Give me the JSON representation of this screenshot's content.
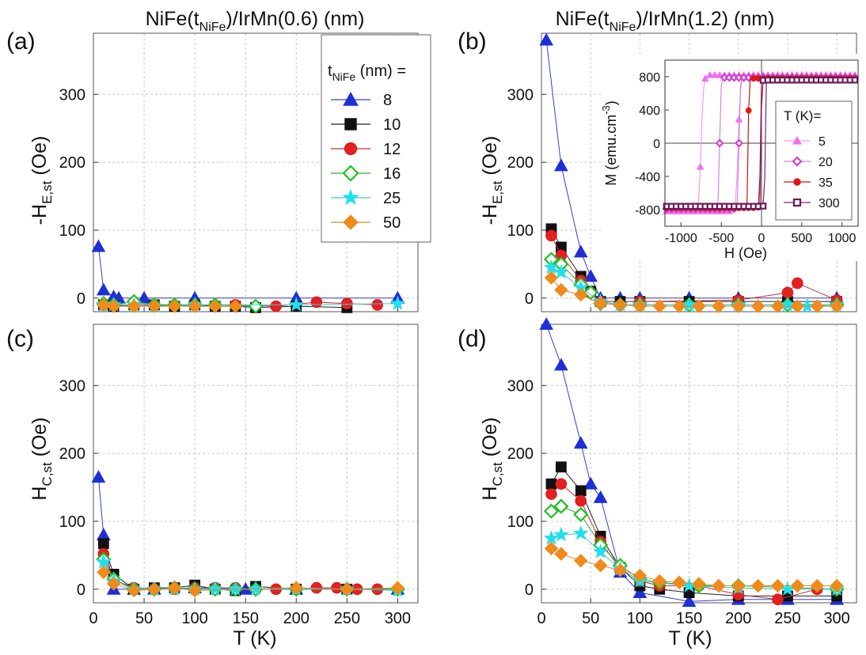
{
  "headings": {
    "left_prefix": "NiFe(t",
    "left_sub": "NiFe",
    "left_suffix": ")/IrMn(0.6)  (nm)",
    "right_prefix": "NiFe(t",
    "right_sub": "NiFe",
    "right_suffix": ")/IrMn(1.2)  (nm)"
  },
  "panel_labels": [
    "(a)",
    "(b)",
    "(c)",
    "(d)"
  ],
  "ylabels": {
    "he": {
      "pre": "-H",
      "sub": "E,st",
      "post": " (Oe)"
    },
    "hc": {
      "pre": "H",
      "sub": "C,st",
      "post": " (Oe)"
    }
  },
  "xlabel": "T (K)",
  "legend": {
    "title_pre": "t",
    "title_sub": "NiFe",
    "title_post": " (nm) =",
    "entries": [
      "8",
      "10",
      "12",
      "16",
      "25",
      "50"
    ]
  },
  "inset": {
    "xlabel": "H (Oe)",
    "ylabel_pre": "M (emu.cm",
    "ylabel_sup": "-3",
    "ylabel_post": ")",
    "legend_title": "T (K)=",
    "entries": [
      "5",
      "20",
      "35",
      "300"
    ]
  },
  "styles": {
    "series": [
      {
        "marker": "triangle",
        "color": "#1f2fd6",
        "fill": "#1f2fd6",
        "line": "#3140c8"
      },
      {
        "marker": "square",
        "color": "#111111",
        "fill": "#111111",
        "line": "#222222"
      },
      {
        "marker": "circle",
        "color": "#d81a1a",
        "fill": "#e52020",
        "line": "#c03030"
      },
      {
        "marker": "diamond-open",
        "color": "#22c022",
        "fill": "#ffffff",
        "line": "#33aa33"
      },
      {
        "marker": "star",
        "color": "#20e0f0",
        "fill": "#20e0f0",
        "line": "#40c8d8"
      },
      {
        "marker": "diamond",
        "color": "#f08a1a",
        "fill": "#f08a1a",
        "line": "#d88a3a"
      }
    ],
    "inset_series": [
      {
        "marker": "triangle",
        "color": "#f070f0",
        "line": "#f59af5"
      },
      {
        "marker": "diamond-open",
        "color": "#d040d0",
        "line": "#d880d8"
      },
      {
        "marker": "circle",
        "color": "#e01818",
        "line": "#c01818"
      },
      {
        "marker": "square-open",
        "color": "#6a1a5a",
        "line": "#7a2a6a"
      }
    ]
  },
  "chart_data": [
    {
      "id": "a",
      "type": "line",
      "xlim": [
        0,
        320
      ],
      "ylim": [
        -20,
        390
      ],
      "xticks": [
        0,
        50,
        100,
        150,
        200,
        250,
        300
      ],
      "yticks": [
        0,
        100,
        200,
        300
      ],
      "grid": true,
      "legend_position": "top-right",
      "series": [
        {
          "name": "8",
          "x": [
            5,
            10,
            20,
            25,
            50,
            100,
            200,
            300
          ],
          "y": [
            76,
            12,
            2,
            0,
            0,
            0,
            0,
            0
          ]
        },
        {
          "name": "10",
          "x": [
            10,
            20,
            40,
            60,
            80,
            100,
            120,
            140,
            160,
            200,
            250
          ],
          "y": [
            -10,
            -12,
            -10,
            -10,
            -12,
            -10,
            -12,
            -12,
            -14,
            -12,
            -14
          ]
        },
        {
          "name": "12",
          "x": [
            10,
            20,
            40,
            60,
            100,
            140,
            180,
            220,
            250,
            280
          ],
          "y": [
            -10,
            -10,
            -10,
            -10,
            -10,
            -10,
            -12,
            -6,
            -8,
            -10
          ]
        },
        {
          "name": "16",
          "x": [
            10,
            20,
            40,
            60,
            80,
            100,
            120,
            160
          ],
          "y": [
            -8,
            -10,
            -5,
            -10,
            -10,
            -10,
            -10,
            -12
          ]
        },
        {
          "name": "25",
          "x": [
            10,
            20,
            40,
            60,
            100,
            200,
            300
          ],
          "y": [
            -10,
            -10,
            -10,
            -12,
            -10,
            -10,
            -8
          ]
        },
        {
          "name": "50",
          "x": [
            10,
            20,
            40,
            60,
            80,
            100,
            120,
            140
          ],
          "y": [
            -10,
            -12,
            -12,
            -12,
            -12,
            -12,
            -12,
            -12
          ]
        }
      ]
    },
    {
      "id": "b",
      "type": "line",
      "xlim": [
        0,
        320
      ],
      "ylim": [
        -20,
        390
      ],
      "xticks": [
        0,
        50,
        100,
        150,
        200,
        250,
        300
      ],
      "yticks": [
        0,
        100,
        200,
        300
      ],
      "grid": true,
      "series": [
        {
          "name": "8",
          "x": [
            5,
            20,
            40,
            50,
            60,
            80,
            100,
            150,
            200,
            250,
            300
          ],
          "y": [
            380,
            195,
            68,
            32,
            0,
            0,
            0,
            0,
            0,
            0,
            0
          ]
        },
        {
          "name": "10",
          "x": [
            10,
            20,
            40,
            50,
            60,
            80,
            100,
            150,
            200,
            250,
            300
          ],
          "y": [
            102,
            75,
            32,
            10,
            -5,
            -5,
            -5,
            -5,
            -5,
            -5,
            -5
          ]
        },
        {
          "name": "12",
          "x": [
            10,
            20,
            40,
            50,
            60,
            100,
            200,
            250,
            260,
            300
          ],
          "y": [
            92,
            63,
            26,
            8,
            -5,
            -5,
            -3,
            8,
            22,
            -3
          ]
        },
        {
          "name": "16",
          "x": [
            10,
            20,
            40,
            50,
            60,
            80,
            100,
            150,
            200,
            250,
            300
          ],
          "y": [
            57,
            50,
            20,
            8,
            -8,
            -10,
            -10,
            -10,
            -10,
            -10,
            -10
          ]
        },
        {
          "name": "25",
          "x": [
            10,
            20,
            40,
            60,
            80,
            100,
            150,
            200,
            250,
            270,
            300
          ],
          "y": [
            45,
            38,
            15,
            -5,
            -10,
            -10,
            -10,
            -10,
            -10,
            -12,
            -10
          ]
        },
        {
          "name": "50",
          "x": [
            10,
            20,
            40,
            60,
            80,
            100,
            120,
            140,
            160,
            180,
            200,
            220,
            240,
            260,
            280,
            300
          ],
          "y": [
            30,
            12,
            5,
            -8,
            -10,
            -12,
            -12,
            -12,
            -12,
            -12,
            -12,
            -12,
            -12,
            -12,
            -12,
            -12
          ]
        }
      ],
      "inset": {
        "type": "scatter",
        "xlim": [
          -1200,
          1200
        ],
        "ylim": [
          -1000,
          1000
        ],
        "xticks": [
          -1000,
          -500,
          0,
          500,
          1000
        ],
        "yticks": [
          -800,
          -400,
          0,
          400,
          800
        ],
        "legend_position": "right",
        "loops": [
          {
            "name": "5",
            "ms": 820,
            "hc": 230,
            "hex": -520
          },
          {
            "name": "20",
            "ms": 790,
            "hc": 120,
            "hex": -400
          },
          {
            "name": "35",
            "ms": 780,
            "hc": 75,
            "hex": -90
          },
          {
            "name": "300",
            "ms": 760,
            "hc": 25,
            "hex": 20
          }
        ]
      }
    },
    {
      "id": "c",
      "type": "line",
      "xlim": [
        0,
        320
      ],
      "ylim": [
        -20,
        390
      ],
      "xticks": [
        0,
        50,
        100,
        150,
        200,
        250,
        300
      ],
      "yticks": [
        0,
        100,
        200,
        300
      ],
      "grid": true,
      "series": [
        {
          "name": "8",
          "x": [
            5,
            10,
            20,
            40,
            60,
            100,
            150,
            200,
            300
          ],
          "y": [
            165,
            80,
            0,
            0,
            0,
            2,
            0,
            0,
            0
          ]
        },
        {
          "name": "10",
          "x": [
            10,
            20,
            40,
            60,
            80,
            100,
            120,
            140,
            160,
            200,
            250
          ],
          "y": [
            67,
            22,
            0,
            2,
            2,
            6,
            0,
            -2,
            4,
            0,
            0
          ]
        },
        {
          "name": "12",
          "x": [
            10,
            20,
            40,
            60,
            80,
            100,
            120,
            140,
            160,
            180,
            200,
            220,
            240,
            260,
            280
          ],
          "y": [
            52,
            14,
            2,
            0,
            0,
            2,
            2,
            2,
            0,
            0,
            0,
            2,
            2,
            0,
            0
          ]
        },
        {
          "name": "16",
          "x": [
            10,
            20,
            40,
            60,
            80,
            100,
            120,
            140,
            160,
            200,
            250,
            300
          ],
          "y": [
            44,
            15,
            0,
            0,
            2,
            0,
            0,
            0,
            0,
            0,
            0,
            0
          ]
        },
        {
          "name": "25",
          "x": [
            10,
            20,
            40,
            60,
            80,
            100,
            120,
            140,
            160,
            200,
            250,
            300
          ],
          "y": [
            40,
            12,
            0,
            0,
            0,
            0,
            0,
            0,
            0,
            0,
            0,
            -2
          ]
        },
        {
          "name": "50",
          "x": [
            10,
            20,
            40,
            60,
            80,
            100,
            200,
            250,
            300
          ],
          "y": [
            25,
            8,
            -2,
            0,
            2,
            -2,
            2,
            0,
            2
          ]
        }
      ]
    },
    {
      "id": "d",
      "type": "line",
      "xlim": [
        0,
        320
      ],
      "ylim": [
        -20,
        390
      ],
      "xticks": [
        0,
        50,
        100,
        150,
        200,
        250,
        300
      ],
      "yticks": [
        0,
        100,
        200,
        300
      ],
      "grid": true,
      "series": [
        {
          "name": "8",
          "x": [
            5,
            20,
            40,
            50,
            60,
            80,
            100,
            150,
            200,
            250,
            300
          ],
          "y": [
            390,
            330,
            215,
            155,
            135,
            25,
            -5,
            -18,
            -15,
            -15,
            -15
          ]
        },
        {
          "name": "10",
          "x": [
            10,
            20,
            40,
            60,
            80,
            100,
            120,
            150,
            200,
            250,
            300
          ],
          "y": [
            155,
            180,
            145,
            78,
            32,
            5,
            0,
            -5,
            -10,
            -10,
            -10
          ]
        },
        {
          "name": "12",
          "x": [
            10,
            20,
            40,
            60,
            80,
            100,
            120,
            160,
            200,
            240,
            280
          ],
          "y": [
            140,
            155,
            130,
            70,
            30,
            12,
            5,
            5,
            -8,
            -15,
            0
          ]
        },
        {
          "name": "16",
          "x": [
            10,
            20,
            40,
            60,
            80,
            100,
            120,
            160,
            200,
            300
          ],
          "y": [
            115,
            122,
            110,
            65,
            35,
            15,
            10,
            5,
            5,
            0
          ]
        },
        {
          "name": "25",
          "x": [
            10,
            20,
            40,
            60,
            80,
            100,
            150,
            200,
            250,
            300
          ],
          "y": [
            75,
            80,
            82,
            55,
            30,
            12,
            5,
            2,
            0,
            0
          ]
        },
        {
          "name": "50",
          "x": [
            10,
            20,
            40,
            60,
            80,
            100,
            120,
            140,
            160,
            180,
            200,
            220,
            240,
            260,
            280,
            300
          ],
          "y": [
            60,
            52,
            42,
            35,
            28,
            20,
            12,
            10,
            8,
            5,
            5,
            5,
            5,
            5,
            5,
            5
          ]
        }
      ]
    }
  ]
}
